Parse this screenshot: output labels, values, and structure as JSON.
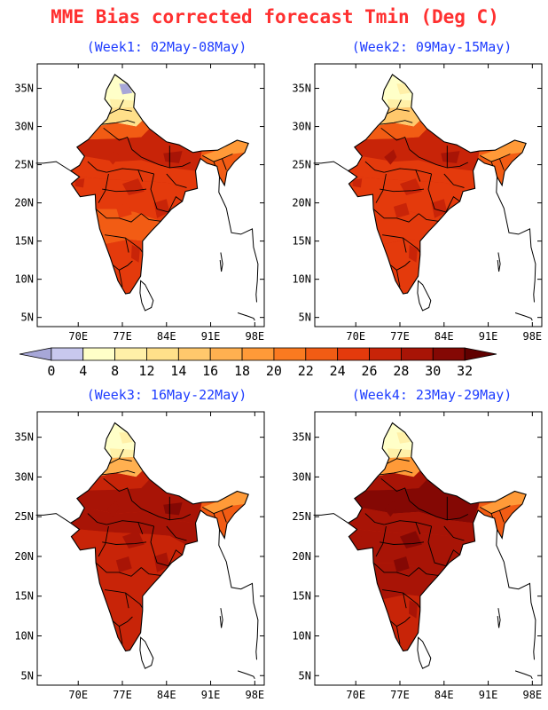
{
  "title": "MME Bias corrected forecast Tmin (Deg C)",
  "panels": [
    {
      "label": "(Week1: 02May-08May)",
      "intensity": 0
    },
    {
      "label": "(Week2: 09May-15May)",
      "intensity": 1
    },
    {
      "label": "(Week3: 16May-22May)",
      "intensity": 2
    },
    {
      "label": "(Week4: 23May-29May)",
      "intensity": 3
    }
  ],
  "lat_ticks": [
    "35N",
    "30N",
    "25N",
    "20N",
    "15N",
    "10N",
    "5N"
  ],
  "lon_ticks": [
    "70E",
    "77E",
    "84E",
    "91E",
    "98E"
  ],
  "colorbar": {
    "labels": [
      "0",
      "4",
      "8",
      "12",
      "14",
      "16",
      "18",
      "20",
      "22",
      "24",
      "26",
      "28",
      "30",
      "32"
    ],
    "colors": [
      "#a7a7d8",
      "#c8c8ee",
      "#ffffc8",
      "#fff0a8",
      "#ffe08a",
      "#ffc86c",
      "#ffb050",
      "#ff9a38",
      "#fa7a20",
      "#f25c14",
      "#e43a0c",
      "#c82408",
      "#a81406",
      "#840804",
      "#600000"
    ]
  }
}
